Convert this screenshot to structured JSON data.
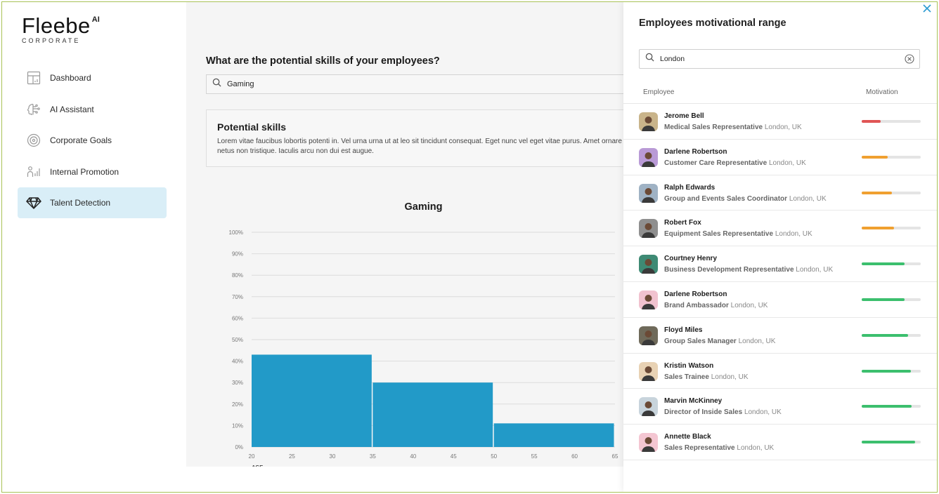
{
  "brand": {
    "name": "Fleebe",
    "sup": "AI",
    "sub": "CORPORATE"
  },
  "sidebar": {
    "items": [
      {
        "label": "Dashboard",
        "icon": "dashboard-icon",
        "active": false
      },
      {
        "label": "AI Assistant",
        "icon": "brain-icon",
        "active": false
      },
      {
        "label": "Corporate Goals",
        "icon": "target-icon",
        "active": false
      },
      {
        "label": "Internal Promotion",
        "icon": "promotion-icon",
        "active": false
      },
      {
        "label": "Talent Detection",
        "icon": "diamond-icon",
        "active": true
      }
    ]
  },
  "main": {
    "question": "What are the potential skills of your employees?",
    "search_value": "Gaming",
    "potential_title": "Potential skills",
    "potential_text": "Lorem vitae faucibus lobortis potenti in. Vel urna urna ut at leo sit tincidunt consequat. Eget nunc vel eget vitae purus. Amet ornare netus non tristique. Iaculis arcu non dui est augue."
  },
  "chart_data": {
    "type": "bar",
    "title": "Gaming",
    "xlabel": "AGE",
    "ylabel": "",
    "x_ticks": [
      20,
      25,
      30,
      35,
      40,
      45,
      50,
      55,
      60,
      65
    ],
    "y_ticks": [
      "0%",
      "10%",
      "20%",
      "30%",
      "40%",
      "50%",
      "60%",
      "70%",
      "80%",
      "90%",
      "100%"
    ],
    "ylim": [
      0,
      100
    ],
    "xlim": [
      20,
      65
    ],
    "grid": true,
    "bins": [
      {
        "from": 20,
        "to": 35,
        "value": 43
      },
      {
        "from": 35,
        "to": 50,
        "value": 30
      },
      {
        "from": 50,
        "to": 65,
        "value": 11
      }
    ],
    "color": "#229ac8"
  },
  "panel": {
    "title": "Employees motivational range",
    "search_value": "London",
    "col_employee": "Employee",
    "col_motivation": "Motivation",
    "employees": [
      {
        "name": "Jerome Bell",
        "role": "Medical Sales Representative",
        "location": "London, UK",
        "motivation": 0.32,
        "color": "#e05555",
        "avatar_bg": "#c9b48a"
      },
      {
        "name": "Darlene Robertson",
        "role": "Customer Care Representative",
        "location": "London, UK",
        "motivation": 0.44,
        "color": "#f0a030",
        "avatar_bg": "#b99ad6"
      },
      {
        "name": "Ralph Edwards",
        "role": "Group and Events Sales Coordinator",
        "location": "London, UK",
        "motivation": 0.51,
        "color": "#f0a030",
        "avatar_bg": "#9fb2c4"
      },
      {
        "name": "Robert Fox",
        "role": "Equipment Sales Representative",
        "location": "London, UK",
        "motivation": 0.55,
        "color": "#f0a030",
        "avatar_bg": "#8f8f8f"
      },
      {
        "name": "Courtney Henry",
        "role": "Business Development Representative",
        "location": "London, UK",
        "motivation": 0.73,
        "color": "#3cbf6e",
        "avatar_bg": "#3e8a74"
      },
      {
        "name": "Darlene Robertson",
        "role": "Brand Ambassador",
        "location": "London, UK",
        "motivation": 0.73,
        "color": "#3cbf6e",
        "avatar_bg": "#f1c2cf"
      },
      {
        "name": "Floyd Miles",
        "role": "Group Sales Manager",
        "location": "London, UK",
        "motivation": 0.79,
        "color": "#3cbf6e",
        "avatar_bg": "#6f6a5a"
      },
      {
        "name": "Kristin Watson",
        "role": "Sales Trainee",
        "location": "London, UK",
        "motivation": 0.83,
        "color": "#3cbf6e",
        "avatar_bg": "#e8d2b4"
      },
      {
        "name": "Marvin McKinney",
        "role": "Director of Inside Sales",
        "location": "London, UK",
        "motivation": 0.84,
        "color": "#3cbf6e",
        "avatar_bg": "#c8d4dc"
      },
      {
        "name": "Annette Black",
        "role": "Sales Representative",
        "location": "London, UK",
        "motivation": 0.91,
        "color": "#3cbf6e",
        "avatar_bg": "#f4c6d2"
      }
    ]
  }
}
